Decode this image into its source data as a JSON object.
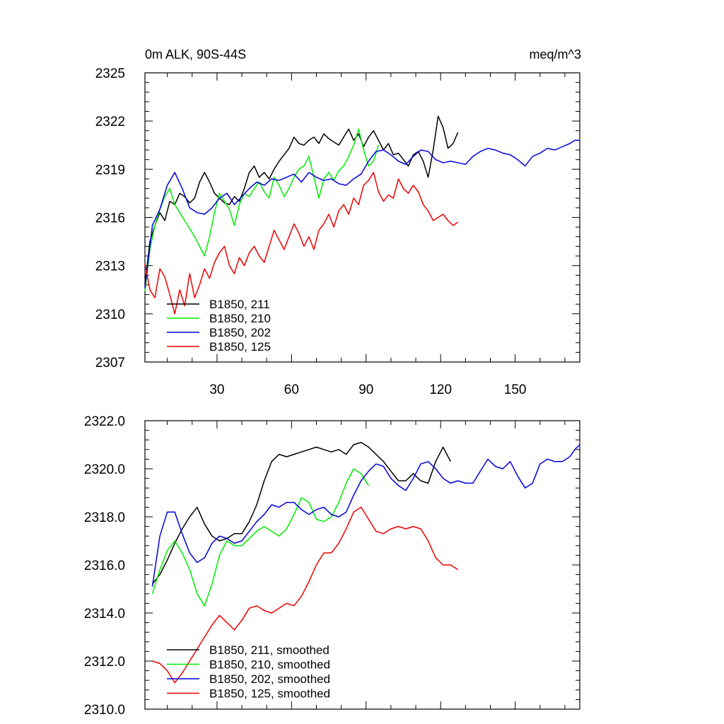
{
  "chart_data": [
    {
      "type": "line",
      "title": "0m ALK, 90S-44S",
      "units": "meq/m^3",
      "xlabel": "",
      "ylabel": "",
      "xlim": [
        1,
        176
      ],
      "ylim": [
        2307,
        2325
      ],
      "yticks": [
        "2307",
        "2310",
        "2313",
        "2316",
        "2319",
        "2322",
        "2325"
      ],
      "xticks": [
        "30",
        "60",
        "90",
        "120",
        "150"
      ],
      "legend_position": "bottom-left",
      "series": [
        {
          "name": "B1850, 211",
          "color": "#000000",
          "x": [
            1,
            3,
            5,
            7,
            9,
            11,
            13,
            15,
            17,
            19,
            21,
            23,
            25,
            27,
            29,
            31,
            33,
            35,
            37,
            39,
            41,
            43,
            45,
            47,
            49,
            51,
            53,
            55,
            57,
            59,
            61,
            63,
            65,
            67,
            69,
            71,
            73,
            75,
            77,
            79,
            81,
            83,
            85,
            87,
            89,
            91,
            93,
            95,
            97,
            99,
            101,
            103,
            105,
            107,
            109,
            111,
            113,
            115,
            117,
            119,
            121,
            123,
            125,
            127
          ],
          "y": [
            2311.8,
            2314.5,
            2315.5,
            2316.3,
            2315.8,
            2317.0,
            2316.8,
            2317.5,
            2317.3,
            2316.9,
            2317.2,
            2318.2,
            2318.8,
            2318.2,
            2317.5,
            2317.2,
            2316.9,
            2316.8,
            2317.3,
            2317.0,
            2317.8,
            2318.8,
            2319.2,
            2318.5,
            2318.8,
            2318.4,
            2319.0,
            2319.5,
            2319.9,
            2320.3,
            2321.0,
            2320.6,
            2320.5,
            2320.8,
            2321.0,
            2320.6,
            2321.2,
            2320.9,
            2320.7,
            2320.5,
            2321.0,
            2321.5,
            2320.8,
            2321.2,
            2320.4,
            2321.0,
            2321.4,
            2320.8,
            2320.2,
            2320.6,
            2319.9,
            2320.0,
            2319.6,
            2319.2,
            2319.9,
            2320.1,
            2319.5,
            2318.5,
            2320.2,
            2322.3,
            2321.6,
            2320.3,
            2320.6,
            2321.3
          ]
        },
        {
          "name": "B1850, 210",
          "color": "#00ee00",
          "x": [
            1,
            3,
            5,
            7,
            9,
            11,
            13,
            15,
            17,
            19,
            21,
            23,
            25,
            27,
            29,
            31,
            33,
            35,
            37,
            39,
            41,
            43,
            45,
            47,
            49,
            51,
            53,
            55,
            57,
            59,
            61,
            63,
            65,
            67,
            69,
            71,
            73,
            75,
            77,
            79,
            81,
            83,
            85,
            87,
            89,
            91,
            93,
            95
          ],
          "y": [
            2311.4,
            2314.0,
            2315.5,
            2316.5,
            2317.3,
            2317.8,
            2316.8,
            2316.3,
            2315.8,
            2315.3,
            2314.8,
            2314.2,
            2313.6,
            2314.8,
            2316.3,
            2317.5,
            2317.0,
            2316.5,
            2315.5,
            2316.8,
            2317.5,
            2317.3,
            2317.8,
            2318.2,
            2317.6,
            2317.2,
            2318.5,
            2318.0,
            2317.3,
            2317.8,
            2318.5,
            2319.0,
            2319.2,
            2319.8,
            2318.5,
            2317.2,
            2318.4,
            2318.8,
            2318.3,
            2318.9,
            2319.2,
            2319.8,
            2320.5,
            2321.5,
            2320.2,
            2319.2,
            2319.5,
            2320.5
          ]
        },
        {
          "name": "B1850, 202",
          "color": "#0000dd",
          "x": [
            1,
            4,
            7,
            10,
            13,
            16,
            19,
            22,
            25,
            28,
            31,
            34,
            37,
            40,
            43,
            46,
            49,
            52,
            55,
            58,
            61,
            64,
            67,
            70,
            73,
            76,
            79,
            82,
            85,
            88,
            91,
            94,
            97,
            100,
            103,
            106,
            109,
            112,
            115,
            118,
            121,
            124,
            127,
            130,
            133,
            136,
            139,
            142,
            145,
            148,
            151,
            154,
            157,
            160,
            163,
            166,
            169,
            172,
            174,
            176
          ],
          "y": [
            2311.6,
            2315.5,
            2316.5,
            2318.0,
            2318.8,
            2317.8,
            2316.6,
            2316.3,
            2316.2,
            2316.6,
            2317.2,
            2317.5,
            2316.8,
            2317.3,
            2317.8,
            2318.2,
            2318.0,
            2318.4,
            2318.3,
            2318.5,
            2318.7,
            2318.2,
            2318.8,
            2318.5,
            2318.3,
            2318.4,
            2318.1,
            2318.0,
            2318.4,
            2318.7,
            2319.5,
            2320.1,
            2320.2,
            2319.9,
            2319.5,
            2319.3,
            2319.8,
            2320.2,
            2320.1,
            2319.6,
            2319.4,
            2319.5,
            2319.4,
            2319.3,
            2319.8,
            2320.1,
            2320.3,
            2320.2,
            2320.0,
            2319.9,
            2319.6,
            2319.2,
            2319.8,
            2320.0,
            2320.3,
            2320.2,
            2320.4,
            2320.6,
            2320.8,
            2320.8
          ]
        },
        {
          "name": "B1850, 125",
          "color": "#ee0000",
          "x": [
            1,
            3,
            5,
            7,
            9,
            11,
            13,
            15,
            17,
            19,
            21,
            23,
            25,
            27,
            29,
            31,
            33,
            35,
            37,
            39,
            41,
            43,
            45,
            47,
            49,
            51,
            53,
            55,
            57,
            59,
            61,
            63,
            65,
            67,
            69,
            71,
            73,
            75,
            77,
            79,
            81,
            83,
            85,
            87,
            89,
            91,
            93,
            95,
            97,
            99,
            101,
            103,
            105,
            107,
            109,
            111,
            113,
            115,
            117,
            119,
            121,
            123,
            125,
            127
          ],
          "y": [
            2313.1,
            2311.5,
            2311.0,
            2312.8,
            2312.3,
            2311.2,
            2310.0,
            2311.5,
            2310.5,
            2312.5,
            2311.0,
            2311.8,
            2312.8,
            2312.2,
            2313.2,
            2313.8,
            2314.2,
            2313.0,
            2312.5,
            2313.5,
            2313.0,
            2313.8,
            2314.2,
            2313.6,
            2313.2,
            2314.2,
            2315.2,
            2314.6,
            2314.0,
            2314.8,
            2315.6,
            2315.0,
            2314.2,
            2314.8,
            2314.0,
            2315.2,
            2315.6,
            2316.2,
            2315.4,
            2316.4,
            2316.8,
            2316.2,
            2317.2,
            2316.8,
            2318.0,
            2318.3,
            2318.8,
            2317.6,
            2317.0,
            2317.4,
            2317.2,
            2318.4,
            2317.8,
            2317.5,
            2318.0,
            2317.6,
            2316.8,
            2316.4,
            2315.8,
            2316.0,
            2316.2,
            2315.8,
            2315.5,
            2315.7
          ]
        }
      ]
    },
    {
      "type": "line",
      "title": "",
      "xlabel": "",
      "ylabel": "",
      "xlim": [
        1,
        176
      ],
      "ylim": [
        2310,
        2322
      ],
      "yticks": [
        "2310.0",
        "2312.0",
        "2314.0",
        "2316.0",
        "2318.0",
        "2320.0",
        "2322.0"
      ],
      "legend_position": "bottom-left",
      "series": [
        {
          "name": "B1850, 211, smoothed",
          "color": "#000000",
          "x": [
            4,
            7,
            10,
            13,
            16,
            19,
            22,
            25,
            28,
            31,
            34,
            37,
            40,
            43,
            46,
            49,
            52,
            55,
            58,
            61,
            64,
            67,
            70,
            73,
            76,
            79,
            82,
            85,
            88,
            91,
            94,
            97,
            100,
            103,
            106,
            109,
            112,
            115,
            118,
            121,
            124
          ],
          "y": [
            2315.2,
            2315.6,
            2316.2,
            2316.9,
            2317.5,
            2318.0,
            2318.4,
            2317.7,
            2317.2,
            2317.0,
            2317.1,
            2317.3,
            2317.3,
            2317.8,
            2318.5,
            2319.5,
            2320.3,
            2320.6,
            2320.5,
            2320.6,
            2320.7,
            2320.8,
            2320.9,
            2320.8,
            2320.7,
            2320.8,
            2320.6,
            2321.0,
            2321.1,
            2320.9,
            2320.6,
            2320.3,
            2319.9,
            2319.5,
            2319.5,
            2319.8,
            2319.5,
            2319.4,
            2320.3,
            2320.9,
            2320.3
          ]
        },
        {
          "name": "B1850, 210, smoothed",
          "color": "#00ee00",
          "x": [
            4,
            7,
            10,
            13,
            16,
            19,
            22,
            25,
            28,
            31,
            34,
            37,
            40,
            43,
            46,
            49,
            52,
            55,
            58,
            61,
            64,
            67,
            70,
            73,
            76,
            79,
            82,
            85,
            88,
            91
          ],
          "y": [
            2314.8,
            2315.8,
            2316.6,
            2317.0,
            2316.5,
            2315.8,
            2314.8,
            2314.3,
            2315.2,
            2316.4,
            2317.0,
            2316.8,
            2316.8,
            2317.1,
            2317.4,
            2317.6,
            2317.4,
            2317.2,
            2317.5,
            2318.1,
            2318.8,
            2318.6,
            2317.9,
            2317.8,
            2318.0,
            2318.6,
            2319.4,
            2320.0,
            2319.8,
            2319.3
          ]
        },
        {
          "name": "B1850, 202, smoothed",
          "color": "#0000dd",
          "x": [
            4,
            7,
            10,
            13,
            16,
            19,
            22,
            25,
            28,
            31,
            34,
            37,
            40,
            43,
            46,
            49,
            52,
            55,
            58,
            61,
            64,
            67,
            70,
            73,
            76,
            79,
            82,
            85,
            88,
            91,
            94,
            97,
            100,
            103,
            106,
            109,
            112,
            115,
            118,
            121,
            124,
            127,
            130,
            133,
            136,
            139,
            142,
            145,
            148,
            151,
            154,
            157,
            160,
            163,
            166,
            169,
            172,
            174,
            176
          ],
          "y": [
            2315.1,
            2317.2,
            2318.2,
            2318.2,
            2317.3,
            2316.5,
            2316.1,
            2316.3,
            2316.9,
            2317.2,
            2317.1,
            2316.9,
            2317.0,
            2317.4,
            2317.8,
            2318.1,
            2318.5,
            2318.4,
            2318.6,
            2318.6,
            2318.3,
            2318.1,
            2318.3,
            2318.4,
            2318.1,
            2318.0,
            2318.2,
            2318.9,
            2319.5,
            2319.9,
            2320.2,
            2320.1,
            2319.6,
            2319.3,
            2319.1,
            2319.6,
            2320.2,
            2320.3,
            2320.0,
            2319.6,
            2319.4,
            2319.5,
            2319.4,
            2319.4,
            2319.9,
            2320.4,
            2320.1,
            2320.0,
            2320.3,
            2319.7,
            2319.2,
            2319.4,
            2320.2,
            2320.4,
            2320.3,
            2320.3,
            2320.5,
            2320.8,
            2321.0
          ]
        },
        {
          "name": "B1850, 125, smoothed",
          "color": "#ee0000",
          "x": [
            4,
            7,
            10,
            13,
            16,
            19,
            22,
            25,
            28,
            31,
            34,
            37,
            40,
            43,
            46,
            49,
            52,
            55,
            58,
            61,
            64,
            67,
            70,
            73,
            76,
            79,
            82,
            85,
            88,
            91,
            94,
            97,
            100,
            103,
            106,
            109,
            112,
            115,
            118,
            121,
            124,
            127
          ],
          "y": [
            2312.0,
            2311.9,
            2311.6,
            2311.1,
            2311.5,
            2312.0,
            2312.5,
            2313.0,
            2313.5,
            2313.9,
            2313.6,
            2313.3,
            2313.7,
            2314.2,
            2314.3,
            2314.1,
            2314.0,
            2314.2,
            2314.4,
            2314.3,
            2314.7,
            2315.3,
            2316.0,
            2316.5,
            2316.5,
            2316.9,
            2317.5,
            2318.2,
            2318.4,
            2317.9,
            2317.4,
            2317.3,
            2317.5,
            2317.6,
            2317.5,
            2317.6,
            2317.5,
            2317.0,
            2316.3,
            2316.0,
            2316.0,
            2315.8
          ]
        }
      ]
    }
  ]
}
